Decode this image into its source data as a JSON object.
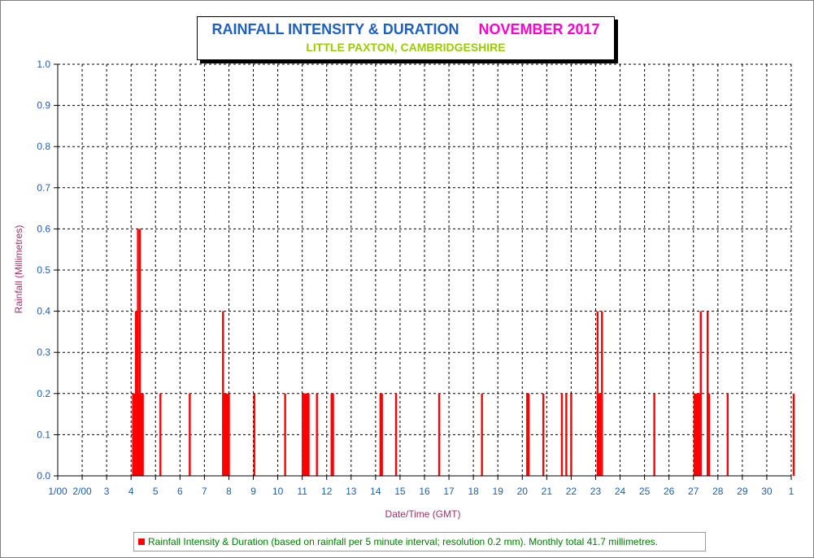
{
  "chart_data": {
    "type": "bar",
    "title": "RAINFALL INTENSITY & DURATION",
    "title_period": "NOVEMBER 2017",
    "subtitle": "LITTLE PAXTON, CAMBRIDGESHIRE",
    "xlabel": "Date/Time (GMT)",
    "ylabel": "Rainfall (Millimetres)",
    "ylim": [
      0,
      1.0
    ],
    "yticks": [
      "0.0",
      "0.1",
      "0.2",
      "0.3",
      "0.4",
      "0.5",
      "0.6",
      "0.7",
      "0.8",
      "0.9",
      "1.0"
    ],
    "xlim_days": [
      1,
      31
    ],
    "xticks": [
      "1/00",
      "2/00",
      "3",
      "4",
      "5",
      "6",
      "7",
      "8",
      "9",
      "10",
      "11",
      "12",
      "13",
      "14",
      "15",
      "16",
      "17",
      "18",
      "19",
      "20",
      "21",
      "22",
      "23",
      "24",
      "25",
      "26",
      "27",
      "28",
      "29",
      "30",
      "1"
    ],
    "grid": true,
    "legend_position": "bottom",
    "series": [
      {
        "name": "Rainfall Intensity & Duration (based on rainfall per 5 minute interval; resolution 0.2 mm). Monthly total 41.7 millimetres.",
        "color": "#ff0000",
        "points": [
          [
            4.08,
            0.2
          ],
          [
            4.12,
            0.2
          ],
          [
            4.16,
            0.2
          ],
          [
            4.2,
            0.4
          ],
          [
            4.24,
            0.4
          ],
          [
            4.28,
            0.6
          ],
          [
            4.32,
            0.2
          ],
          [
            4.36,
            0.6
          ],
          [
            4.4,
            0.2
          ],
          [
            4.44,
            0.2
          ],
          [
            4.48,
            0.2
          ],
          [
            5.2,
            0.2
          ],
          [
            6.4,
            0.2
          ],
          [
            7.76,
            0.4
          ],
          [
            7.8,
            0.2
          ],
          [
            7.84,
            0.2
          ],
          [
            7.88,
            0.2
          ],
          [
            7.92,
            0.2
          ],
          [
            7.96,
            0.2
          ],
          [
            8.0,
            0.2
          ],
          [
            9.04,
            0.2
          ],
          [
            10.3,
            0.2
          ],
          [
            11.02,
            0.2
          ],
          [
            11.06,
            0.2
          ],
          [
            11.1,
            0.2
          ],
          [
            11.14,
            0.2
          ],
          [
            11.18,
            0.2
          ],
          [
            11.22,
            0.2
          ],
          [
            11.26,
            0.2
          ],
          [
            11.6,
            0.2
          ],
          [
            12.2,
            0.2
          ],
          [
            12.26,
            0.2
          ],
          [
            14.2,
            0.2
          ],
          [
            14.26,
            0.2
          ],
          [
            14.84,
            0.2
          ],
          [
            16.6,
            0.2
          ],
          [
            18.35,
            0.2
          ],
          [
            20.2,
            0.2
          ],
          [
            20.26,
            0.2
          ],
          [
            20.86,
            0.2
          ],
          [
            21.62,
            0.2
          ],
          [
            21.8,
            0.2
          ],
          [
            22.0,
            0.2
          ],
          [
            23.08,
            0.4
          ],
          [
            23.14,
            0.2
          ],
          [
            23.18,
            0.2
          ],
          [
            23.26,
            0.4
          ],
          [
            25.4,
            0.2
          ],
          [
            27.04,
            0.2
          ],
          [
            27.1,
            0.2
          ],
          [
            27.14,
            0.2
          ],
          [
            27.18,
            0.2
          ],
          [
            27.22,
            0.2
          ],
          [
            27.26,
            0.2
          ],
          [
            27.3,
            0.4
          ],
          [
            27.58,
            0.4
          ],
          [
            27.64,
            0.2
          ],
          [
            28.4,
            0.2
          ],
          [
            31.1,
            0.2
          ]
        ]
      }
    ]
  }
}
